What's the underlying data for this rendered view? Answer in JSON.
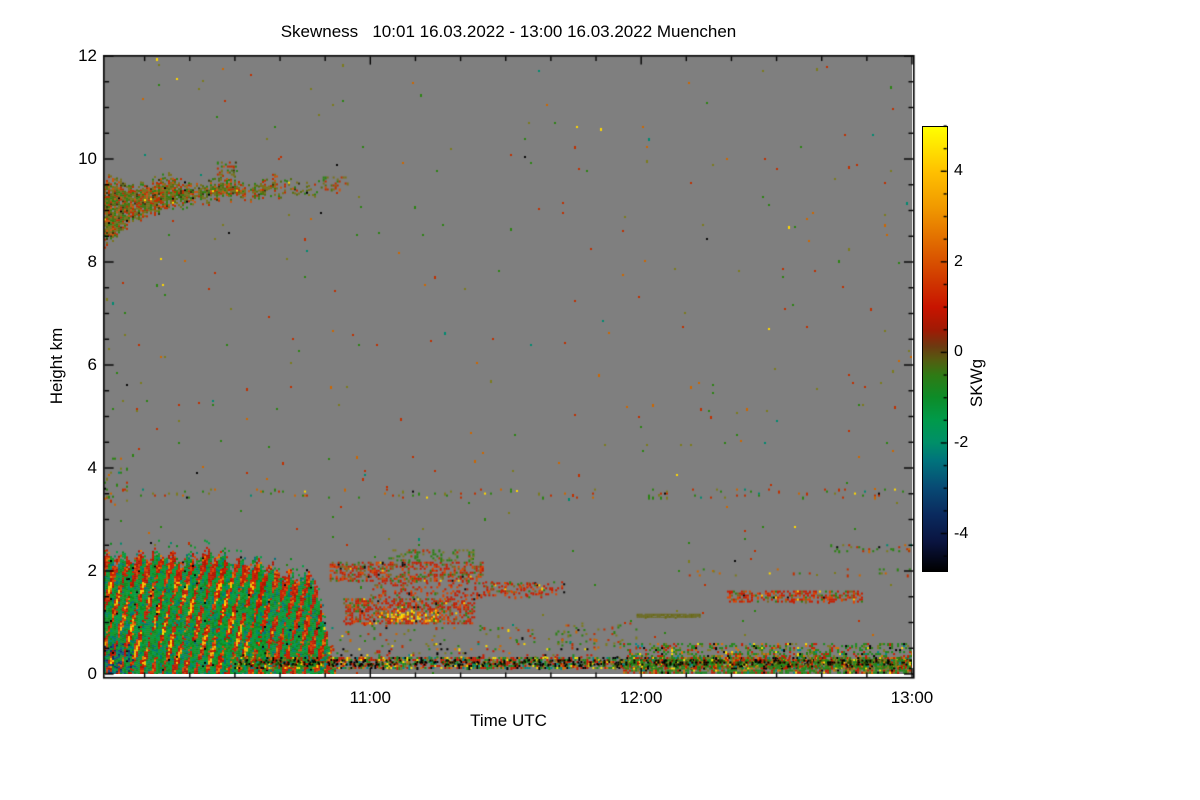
{
  "figure": {
    "background": "#ffffff"
  },
  "chart_data": {
    "type": "heatmap",
    "title": "Skewness   10:01 16.03.2022 - 13:00 16.03.2022 Muenchen",
    "xlabel": "Time UTC",
    "ylabel": "Height km",
    "x_axis": {
      "start": "10:01",
      "end": "13:00",
      "duration_min": 179,
      "major_ticks": [
        {
          "label": "11:00",
          "min": 59
        },
        {
          "label": "12:00",
          "min": 119
        },
        {
          "label": "13:00",
          "min": 179
        }
      ],
      "minor_ticks_min": [
        9,
        19,
        29,
        39,
        49,
        69,
        79,
        89,
        99,
        109,
        129,
        139,
        149,
        159,
        169
      ]
    },
    "y_axis": {
      "range_km": [
        0,
        12
      ],
      "major_ticks": [
        0,
        2,
        4,
        6,
        8,
        10,
        12
      ],
      "minor_tick_every_km": 0.5
    },
    "colorbar": {
      "label": "SKWg",
      "value_top": 5,
      "value_bottom": -4.85,
      "major_ticks": [
        4,
        2,
        0,
        -2,
        -4
      ],
      "minor_tick_every": 0.5,
      "stops": [
        [
          5,
          "#ffff00"
        ],
        [
          4.5,
          "#ffe000"
        ],
        [
          4,
          "#ffc000"
        ],
        [
          3.2,
          "#f09800"
        ],
        [
          2.4,
          "#e06800"
        ],
        [
          1.6,
          "#d03800"
        ],
        [
          1,
          "#c81400"
        ],
        [
          0.5,
          "#a01a04"
        ],
        [
          0.15,
          "#6e3810"
        ],
        [
          -0.15,
          "#565a10"
        ],
        [
          -0.5,
          "#2f7a14"
        ],
        [
          -1,
          "#0d8c28"
        ],
        [
          -1.5,
          "#009a4a"
        ],
        [
          -2,
          "#008f68"
        ],
        [
          -2.4,
          "#00737c"
        ],
        [
          -3,
          "#084a74"
        ],
        [
          -3.6,
          "#0a2a5e"
        ],
        [
          -4.2,
          "#0a1440"
        ],
        [
          -4.85,
          "#000000"
        ]
      ]
    },
    "nodata_color": "#7f7f7f",
    "frame_color": "#000000",
    "palettes": {
      "mixed": [
        [
          "#c03000",
          3
        ],
        [
          "#2c8313",
          3
        ],
        [
          "#cc6600",
          1.5
        ],
        [
          "#7c7c1e",
          2
        ],
        [
          "#ffd800",
          0.3
        ],
        [
          "#008a70",
          0.6
        ],
        [
          "#0a0a0a",
          0.4
        ]
      ],
      "cloudmix": [
        [
          "#7b731c",
          5
        ],
        [
          "#557012",
          3
        ],
        [
          "#2c8313",
          2
        ],
        [
          "#c03000",
          3
        ],
        [
          "#cc5510",
          1.5
        ],
        [
          "#3a3a0e",
          0.8
        ],
        [
          "#ffe000",
          0.15
        ],
        [
          "#000000",
          0.25
        ]
      ],
      "redmix": [
        [
          "#c81e00",
          5
        ],
        [
          "#e04400",
          2
        ],
        [
          "#7c6a1e",
          1.5
        ],
        [
          "#2c8313",
          1.2
        ],
        [
          "#ffce00",
          0.25
        ],
        [
          "#0a0a0a",
          0.3
        ]
      ],
      "surface": [
        [
          "#c81e00",
          3
        ],
        [
          "#1d8c1e",
          3
        ],
        [
          "#000000",
          1.6
        ],
        [
          "#ffe000",
          0.9
        ],
        [
          "#008a8a",
          0.7
        ],
        [
          "#e07000",
          1
        ],
        [
          "#7c7c1e",
          1.3
        ]
      ],
      "surfaceGreen": [
        [
          "#1d8c1e",
          3
        ],
        [
          "#2c8313",
          2
        ],
        [
          "#c81e00",
          2
        ],
        [
          "#7c7c1e",
          1.5
        ],
        [
          "#ffe000",
          0.5
        ],
        [
          "#e07000",
          0.8
        ],
        [
          "#000000",
          0.6
        ],
        [
          "#008a8a",
          0.4
        ]
      ],
      "yellowline": [
        [
          "#ffe000",
          3
        ],
        [
          "#ffaa00",
          2
        ],
        [
          "#e05500",
          1
        ]
      ],
      "olive": [
        [
          "#6b6b14",
          1
        ]
      ],
      "greenclump": [
        [
          "#2c8313",
          3
        ],
        [
          "#7c7a1e",
          2
        ],
        [
          "#c03000",
          1
        ]
      ],
      "blackline": [
        [
          "#000000",
          1
        ],
        [
          "#203a00",
          0.3
        ]
      ],
      "blRed": [
        [
          "#cf1e00",
          3
        ],
        [
          "#b41400",
          2
        ],
        [
          "#e04400",
          1.5
        ],
        [
          "#ee7700",
          0.7
        ]
      ],
      "blGreen": [
        [
          "#129b2e",
          3
        ],
        [
          "#00a344",
          2
        ],
        [
          "#0d8c1e",
          2
        ],
        [
          "#008a6e",
          1.2
        ],
        [
          "#00737c",
          0.7
        ]
      ]
    },
    "regions": [
      {
        "type": "scatter",
        "name": "global-sparse-speckle",
        "t": [
          0,
          179
        ],
        "h": [
          0,
          12
        ],
        "density": 0.0028,
        "palette": "mixed"
      },
      {
        "type": "scatter",
        "name": "line-3p5km",
        "t": [
          0,
          179
        ],
        "h": [
          3.42,
          3.6
        ],
        "density": 0.045,
        "palette": "mixed"
      },
      {
        "type": "scatter",
        "name": "left-midlevel-specks",
        "t": [
          0,
          5
        ],
        "h": [
          3.3,
          4.2
        ],
        "density": 0.06,
        "palette": "mixed"
      },
      {
        "type": "cloud",
        "name": "midlevel-cloud-band",
        "t": [
          0,
          48
        ],
        "palette": "cloudmix"
      },
      {
        "type": "scatter",
        "name": "cloud-fragment-late",
        "t": [
          48,
          54
        ],
        "h": [
          9.42,
          9.66
        ],
        "density": 0.3,
        "palette": "cloudmix"
      },
      {
        "type": "scatter",
        "name": "cloud-fragment-above",
        "t": [
          25,
          29
        ],
        "h": [
          9.7,
          9.95
        ],
        "density": 0.45,
        "palette": "cloudmix"
      },
      {
        "type": "bl",
        "name": "boundary-layer-block",
        "t": [
          0,
          51
        ]
      },
      {
        "type": "scatter",
        "name": "band-2km",
        "t": [
          50,
          84
        ],
        "h": [
          1.82,
          2.18
        ],
        "density": 0.5,
        "palette": "redmix"
      },
      {
        "type": "scatter",
        "name": "clump-2p3km",
        "t": [
          63,
          82
        ],
        "h": [
          2.2,
          2.42
        ],
        "density": 0.3,
        "palette": "greenclump"
      },
      {
        "type": "scatter",
        "name": "band-1p2km",
        "t": [
          53,
          82
        ],
        "h": [
          1.0,
          1.47
        ],
        "density": 0.55,
        "palette": "redmix"
      },
      {
        "type": "scatter",
        "name": "yellow-dots-1p1km",
        "t": [
          60,
          74
        ],
        "h": [
          1.05,
          1.25
        ],
        "density": 0.25,
        "palette": "yellowline"
      },
      {
        "type": "scatter",
        "name": "band-1p6km",
        "t": [
          59,
          97
        ],
        "h": [
          1.5,
          1.78
        ],
        "density": 0.26,
        "palette": "redmix"
      },
      {
        "type": "scatter",
        "name": "streak-1p7km",
        "t": [
          84,
          102
        ],
        "h": [
          1.55,
          1.8
        ],
        "density": 0.2,
        "palette": "redmix"
      },
      {
        "type": "scatter",
        "name": "specks-mid",
        "t": [
          100,
          118
        ],
        "h": [
          0.5,
          1.0
        ],
        "density": 0.07,
        "palette": "mixed"
      },
      {
        "type": "scatter",
        "name": "specks-low",
        "t": [
          30,
          115
        ],
        "h": [
          0.55,
          0.95
        ],
        "density": 0.05,
        "palette": "mixed"
      },
      {
        "type": "scatter",
        "name": "olive-line-1p1km",
        "t": [
          118,
          132
        ],
        "h": [
          1.1,
          1.17
        ],
        "density": 0.85,
        "palette": "olive",
        "cellh": 1
      },
      {
        "type": "scatter",
        "name": "band-right-1p5km",
        "t": [
          138,
          168
        ],
        "h": [
          1.42,
          1.62
        ],
        "density": 0.5,
        "palette": "redmix"
      },
      {
        "type": "scatter",
        "name": "line-right-2p5km",
        "t": [
          160,
          179
        ],
        "h": [
          2.4,
          2.52
        ],
        "density": 0.17,
        "palette": "mixed"
      },
      {
        "type": "scatter",
        "name": "sparse-right-2km",
        "t": [
          126,
          179
        ],
        "h": [
          1.9,
          2.05
        ],
        "density": 0.05,
        "palette": "mixed"
      },
      {
        "type": "scatter",
        "name": "surface-band",
        "t": [
          28,
          179
        ],
        "h": [
          0.12,
          0.33
        ],
        "density": 0.7,
        "palette": "surface"
      },
      {
        "type": "scatter",
        "name": "surface-top-sparse",
        "t": [
          28,
          115
        ],
        "h": [
          0.33,
          0.5
        ],
        "density": 0.1,
        "palette": "surface"
      },
      {
        "type": "scatter",
        "name": "surface-right-upper",
        "t": [
          115,
          179
        ],
        "h": [
          0.28,
          0.6
        ],
        "density": 0.4,
        "palette": "surfaceGreen"
      },
      {
        "type": "scatter",
        "name": "surface-right-lower",
        "t": [
          115,
          179
        ],
        "h": [
          0.04,
          0.28
        ],
        "density": 0.75,
        "palette": "surfaceGreen"
      },
      {
        "type": "scatter",
        "name": "surface-dark-core",
        "t": [
          30,
          179
        ],
        "h": [
          0.2,
          0.28
        ],
        "density": 0.3,
        "palette": "blackline"
      }
    ]
  }
}
